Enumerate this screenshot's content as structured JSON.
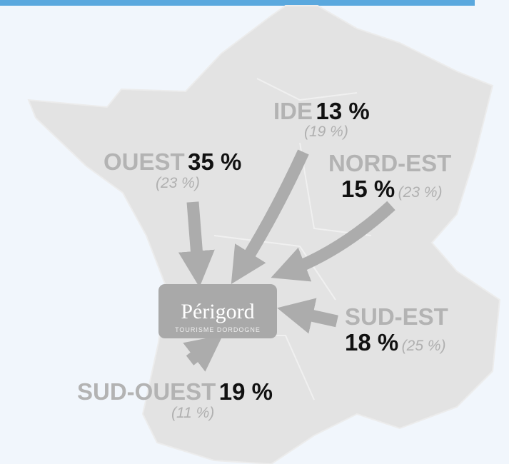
{
  "regions": [
    {
      "name": "IDE",
      "share": "13 %",
      "previous": "(19 %)"
    },
    {
      "name": "OUEST",
      "share": "35 %",
      "previous": "(23 %)"
    },
    {
      "name": "NORD-EST",
      "share": "15 %",
      "previous": "(23 %)"
    },
    {
      "name": "SUD-EST",
      "share": "18 %",
      "previous": "(25 %)"
    },
    {
      "name": "SUD-OUEST",
      "share": "19 %",
      "previous": "(11 %)"
    }
  ],
  "logo": {
    "title": "Périgord",
    "subtitle": "TOURISME DORDOGNE"
  }
}
